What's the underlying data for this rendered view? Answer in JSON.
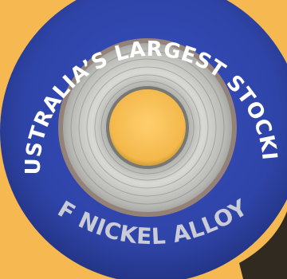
{
  "badge": {
    "top_text": "AUSTRALIA’S LARGEST STOCKIST",
    "bottom_text": "OF NICKEL ALLOYS",
    "image_subject": "nickel-alloy-coil"
  },
  "colors": {
    "background": "#f6b850",
    "disc": "#2f44a8",
    "disc_edge": "#1f2f7a",
    "top_text": "#ffffff",
    "bottom_text": "#c9cbd6",
    "coil_highlight": "#f2f2f0",
    "coil_mid": "#b7b7b3",
    "coil_dark": "#6f6f6b",
    "core_hole": "#f3b84b"
  }
}
